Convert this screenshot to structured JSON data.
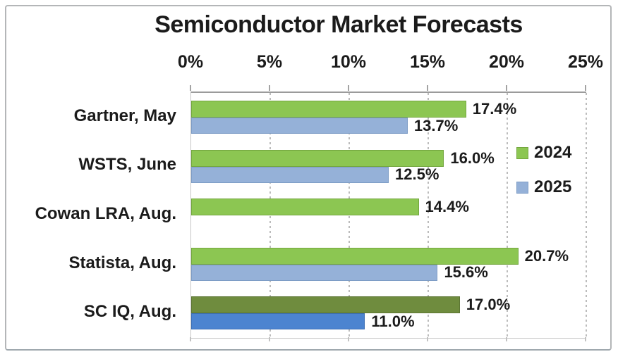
{
  "title": "Semiconductor Market Forecasts",
  "chart_data": {
    "type": "bar",
    "orientation": "horizontal",
    "title": "Semiconductor Market Forecasts",
    "categories": [
      "Gartner, May",
      "WSTS, June",
      "Cowan LRA, Aug.",
      "Statista, Aug.",
      "SC IQ, Aug."
    ],
    "series": [
      {
        "name": "2024",
        "values": [
          17.4,
          16.0,
          14.4,
          20.7,
          17.0
        ],
        "labels": [
          "17.4%",
          "16.0%",
          "14.4%",
          "20.7%",
          "17.0%"
        ],
        "fills": [
          "#8CC652",
          "#8CC652",
          "#8CC652",
          "#8CC652",
          "#6F8C3E"
        ],
        "edges": [
          "#74A73F",
          "#74A73F",
          "#74A73F",
          "#74A73F",
          "#5C7533"
        ]
      },
      {
        "name": "2025",
        "values": [
          13.7,
          12.5,
          null,
          15.6,
          11.0
        ],
        "labels": [
          "13.7%",
          "12.5%",
          null,
          "15.6%",
          "11.0%"
        ],
        "fills": [
          "#95B1D8",
          "#95B1D8",
          null,
          "#95B1D8",
          "#4C84D0"
        ],
        "edges": [
          "#7E9DC6",
          "#7E9DC6",
          null,
          "#7E9DC6",
          "#3C6FB6"
        ]
      }
    ],
    "axis": {
      "ticks": [
        "0%",
        "5%",
        "10%",
        "15%",
        "20%",
        "25%"
      ],
      "min": 0,
      "max": 25,
      "grid": "dashed-vertical",
      "position": "top"
    },
    "legend": {
      "position": "inside-right",
      "entries": [
        {
          "label": "2024",
          "color": "#8CC652",
          "edge": "#74A73F"
        },
        {
          "label": "2025",
          "color": "#95B1D8",
          "edge": "#7E9DC6"
        }
      ]
    },
    "colors": {
      "bar_2024": "#8CC652",
      "bar_2025": "#95B1D8",
      "bar_2024_sciq": "#6F8C3E",
      "bar_2025_sciq": "#4C84D0",
      "gridline": "#bcbcbc",
      "axis_line": "#9b9b9b",
      "text": "#1b1b1b"
    }
  }
}
